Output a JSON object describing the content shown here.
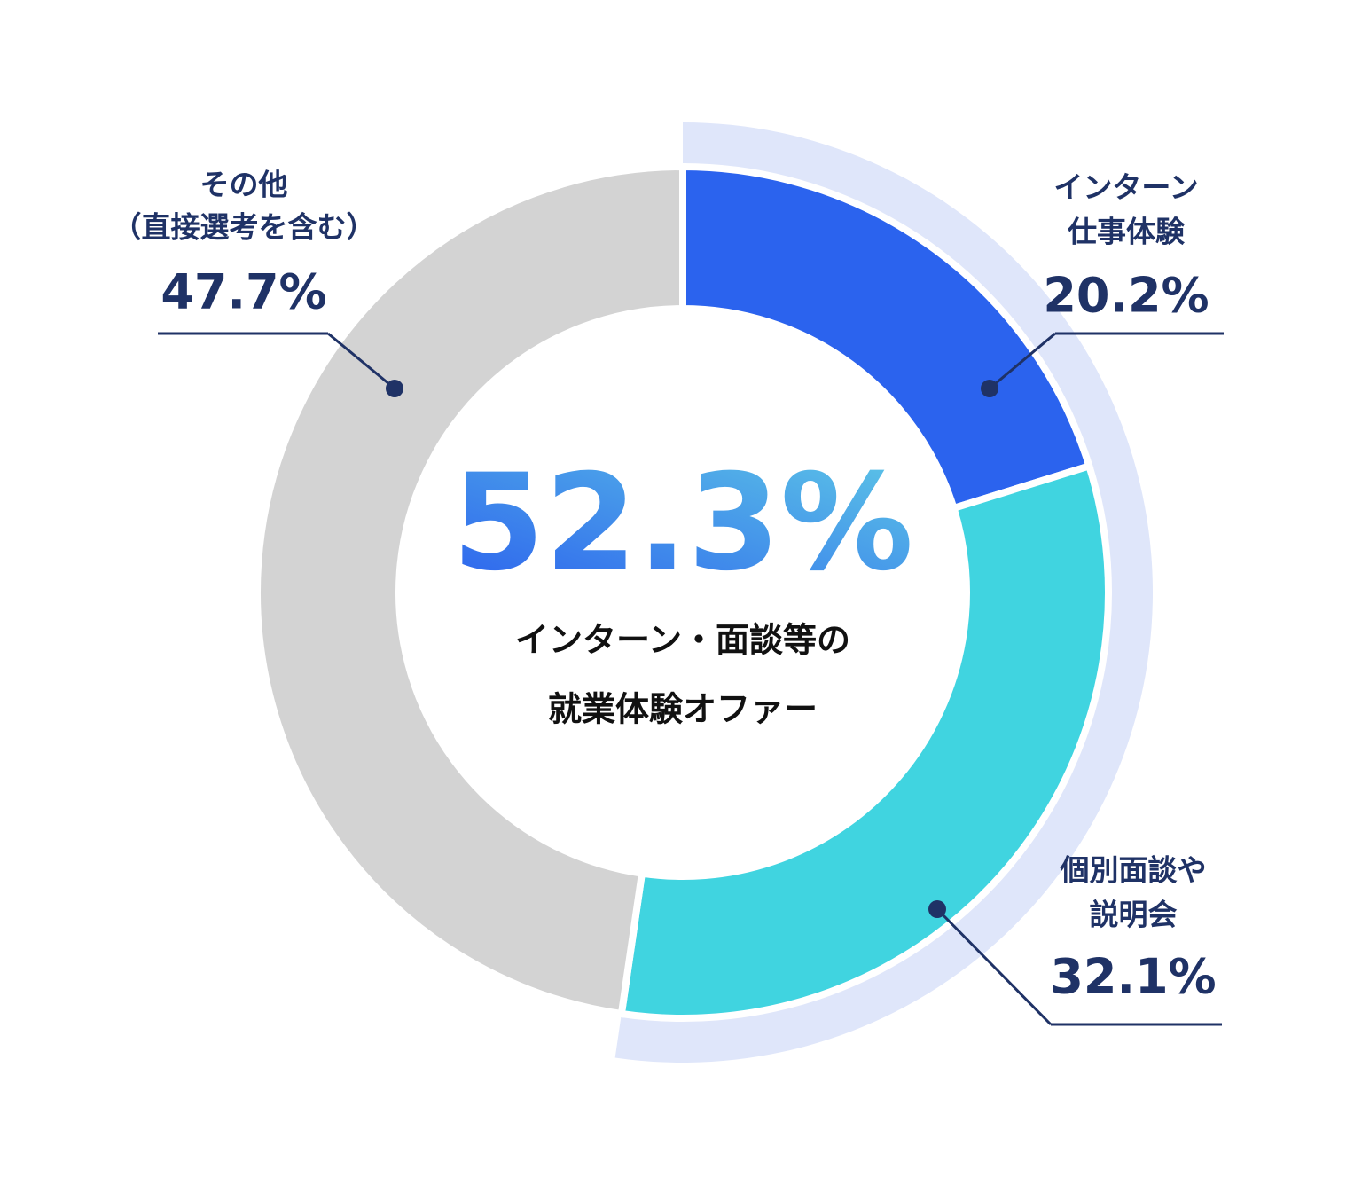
{
  "chart_data": {
    "type": "donut",
    "categories": [
      [
        "インターン",
        "仕事体験"
      ],
      [
        "個別面談や",
        "説明会"
      ],
      [
        "その他",
        "（直接選考を含む）"
      ]
    ],
    "values": [
      20.2,
      32.1,
      47.7
    ],
    "value_labels": [
      "20.2%",
      "32.1%",
      "47.7%"
    ],
    "colors": [
      "#2b63ee",
      "#40d4e0",
      "#d3d3d3"
    ],
    "highlight": {
      "value": 52.3,
      "label": "52.3%",
      "color": "#dfe6fa",
      "text": [
        "インターン・面談等の",
        "就業体験オファー"
      ]
    }
  }
}
